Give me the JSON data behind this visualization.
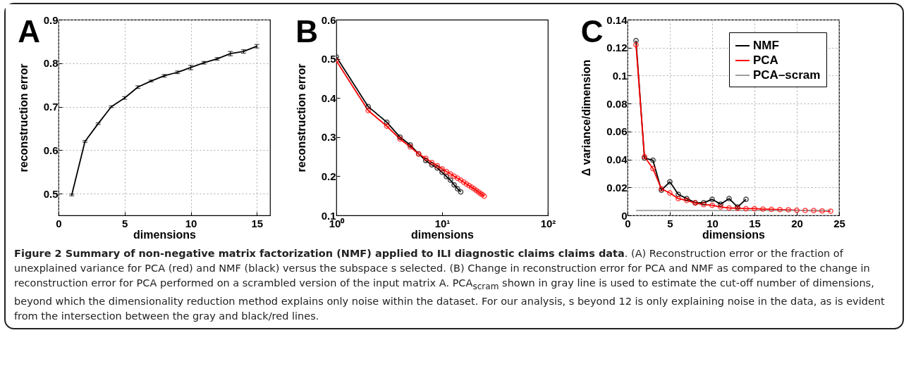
{
  "chart_data": [
    {
      "type": "line",
      "title": "A",
      "xlabel": "dimensions",
      "ylabel": "reconstruction error",
      "x": [
        1,
        2,
        3,
        4,
        5,
        6,
        7,
        8,
        9,
        10,
        11,
        12,
        13,
        14,
        15
      ],
      "xlim": [
        0,
        16
      ],
      "xticks": [
        0,
        5,
        10,
        15
      ],
      "ylim": [
        0.45,
        0.9
      ],
      "yticks": [
        0.5,
        0.6,
        0.7,
        0.8,
        0.9
      ],
      "grid": true,
      "marker": "none",
      "line_style": "solid",
      "series": [
        {
          "color": "#000000",
          "values": [
            0.497,
            0.62,
            0.661,
            0.7,
            0.72,
            0.745,
            0.759,
            0.771,
            0.779,
            0.79,
            0.801,
            0.81,
            0.822,
            0.827,
            0.839
          ],
          "errors": [
            0.002,
            0.002,
            0.002,
            0.002,
            0.003,
            0.003,
            0.002,
            0.003,
            0.003,
            0.005,
            0.003,
            0.003,
            0.005,
            0.004,
            0.004
          ]
        }
      ],
      "annotations": [
        "Figure 2 Summary of non-negative matrix factorization (NMF) applied to ILI diagnostic claims claims data",
        ". (A) Reconstruction error or the fraction of unexplained variance for PCA (red) and NMF (black) versus the subspace s selected. (B) Change in reconstruction error for PCA and NMF as compared to the change in reconstruction error for PCA performed on a scrambled version of the input matrix A. PCA$_{scram}$ shown in gray line is used to estimate the cut-off number of dimensions, beyond which the dimensionality reduction method explains only noise within the dataset. For our analysis, s beyond 12 is only explaining noise in the data, as is evident from the intersection between the gray and black/red lines."
      ]
    },
    {
      "type": "line",
      "title": "B",
      "xlabel": "dimensions",
      "ylabel": "reconstruction error",
      "log": "x",
      "xlim": [
        1,
        100
      ],
      "xticks": [
        {
          "value": 1,
          "label": "10⁰"
        },
        {
          "value": 10,
          "label": "10¹"
        },
        {
          "value": 100,
          "label": "10²"
        }
      ],
      "ylim": [
        0.1,
        0.6
      ],
      "yticks": [
        0.1,
        0.2,
        0.3,
        0.4,
        0.5,
        0.6
      ],
      "grid": false,
      "marker": "circle",
      "line_style": "solid",
      "series": [
        {
          "color": "#000000",
          "x": [
            1,
            2,
            3,
            4,
            5,
            6,
            7,
            8,
            9,
            10,
            11,
            12,
            13,
            14,
            15
          ],
          "values": [
            0.505,
            0.378,
            0.338,
            0.3,
            0.28,
            0.257,
            0.24,
            0.229,
            0.221,
            0.21,
            0.199,
            0.19,
            0.178,
            0.168,
            0.16
          ]
        },
        {
          "color": "#ff0000",
          "x": [
            1,
            2,
            3,
            4,
            5,
            6,
            7,
            8,
            9,
            10,
            11,
            12,
            13,
            14,
            15,
            16,
            17,
            18,
            19,
            20,
            21,
            22,
            23,
            24,
            25
          ],
          "values": [
            0.495,
            0.368,
            0.328,
            0.295,
            0.275,
            0.257,
            0.246,
            0.235,
            0.227,
            0.219,
            0.212,
            0.206,
            0.2,
            0.195,
            0.19,
            0.185,
            0.18,
            0.176,
            0.172,
            0.168,
            0.164,
            0.16,
            0.156,
            0.153,
            0.149
          ]
        }
      ]
    },
    {
      "type": "line",
      "title": "C",
      "xlabel": "dimensions",
      "ylabel": "Δ variance/dimension",
      "xlim": [
        0,
        25
      ],
      "xticks": [
        0,
        5,
        10,
        15,
        20,
        25
      ],
      "ylim": [
        0,
        0.14
      ],
      "yticks": [
        0,
        0.02,
        0.04,
        0.06,
        0.08,
        0.1,
        0.12,
        0.14
      ],
      "grid": true,
      "legend": "top right",
      "line_style": "solid",
      "series": [
        {
          "name": "NMF",
          "color": "#000000",
          "marker": "circle",
          "x": [
            1,
            2,
            3,
            4,
            5,
            6,
            7,
            8,
            9,
            10,
            11,
            12,
            13,
            14
          ],
          "values": [
            0.125,
            0.041,
            0.0395,
            0.018,
            0.024,
            0.015,
            0.012,
            0.009,
            0.009,
            0.0115,
            0.008,
            0.012,
            0.006,
            0.0115
          ]
        },
        {
          "name": "PCA",
          "color": "#ff0000",
          "marker": "circle",
          "x": [
            1,
            2,
            3,
            4,
            5,
            6,
            7,
            8,
            9,
            10,
            11,
            12,
            13,
            14,
            15,
            16,
            17,
            18,
            19,
            20,
            21,
            22,
            23,
            24
          ],
          "values": [
            0.122,
            0.042,
            0.0335,
            0.019,
            0.016,
            0.012,
            0.0107,
            0.0088,
            0.0077,
            0.0072,
            0.006,
            0.0053,
            0.0051,
            0.0048,
            0.0048,
            0.0045,
            0.0043,
            0.0041,
            0.004,
            0.0037,
            0.0035,
            0.0034,
            0.0032,
            0.003
          ]
        },
        {
          "name": "PCA–scram",
          "color": "#a0a0a0",
          "marker": "none",
          "x": [
            1,
            24
          ],
          "values": [
            0.0035,
            0.0035
          ]
        }
      ]
    }
  ]
}
